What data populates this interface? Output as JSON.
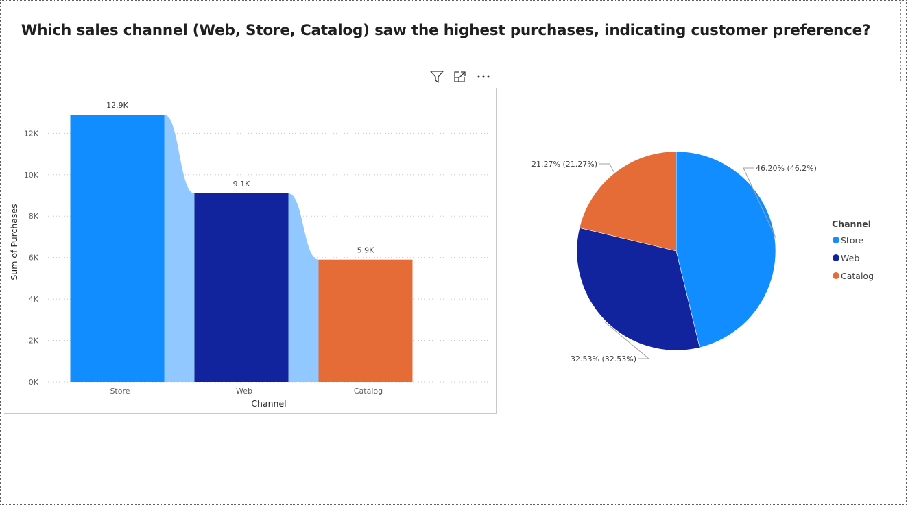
{
  "page": {
    "title": "Which sales channel (Web, Store, Catalog) saw the highest purchases, indicating customer preference?"
  },
  "header_icons": [
    "filter-icon",
    "focus-mode-icon",
    "more-options-icon"
  ],
  "chart_data": [
    {
      "type": "bar",
      "categories": [
        "Store",
        "Web",
        "Catalog"
      ],
      "values": [
        12900,
        9100,
        5900
      ],
      "data_labels": [
        "12.9K",
        "9.1K",
        "5.9K"
      ],
      "xlabel": "Channel",
      "ylabel": "Sum of Purchases",
      "ylim": [
        0,
        13500
      ],
      "yticks": [
        {
          "value": 0,
          "label": "0K"
        },
        {
          "value": 2000,
          "label": "2K"
        },
        {
          "value": 4000,
          "label": "4K"
        },
        {
          "value": 6000,
          "label": "6K"
        },
        {
          "value": 8000,
          "label": "8K"
        },
        {
          "value": 10000,
          "label": "10K"
        },
        {
          "value": 12000,
          "label": "12K"
        }
      ],
      "colors": [
        "#118DFF",
        "#12239E",
        "#E66C37"
      ],
      "ribbon_color": "#91C8FF",
      "grid": true
    },
    {
      "type": "pie",
      "legend_title": "Channel",
      "legend_position": "right",
      "slices": [
        {
          "name": "Store",
          "value": 46.2,
          "label": "46.20% (46.2%)",
          "color": "#118DFF"
        },
        {
          "name": "Web",
          "value": 32.53,
          "label": "32.53% (32.53%)",
          "color": "#12239E"
        },
        {
          "name": "Catalog",
          "value": 21.27,
          "label": "21.27% (21.27%)",
          "color": "#E66C37"
        }
      ]
    }
  ]
}
